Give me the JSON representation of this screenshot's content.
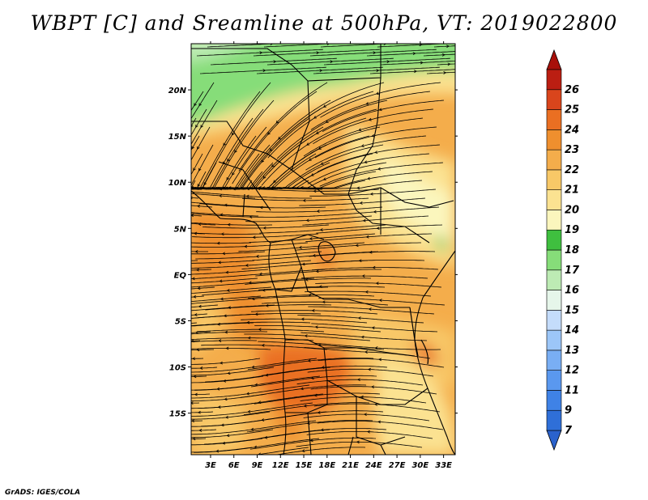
{
  "title": "WBPT [C] and Sreamline at 500hPa, VT: 2019022800",
  "credit": "GrADS: IGES/COLA",
  "map": {
    "lon_labels": [
      "3E",
      "6E",
      "9E",
      "12E",
      "15E",
      "18E",
      "21E",
      "24E",
      "27E",
      "30E",
      "33E"
    ],
    "lon_values": [
      3,
      6,
      9,
      12,
      15,
      18,
      21,
      24,
      27,
      30,
      33
    ],
    "lat_labels": [
      "20N",
      "15N",
      "10N",
      "5N",
      "EQ",
      "5S",
      "10S",
      "15S"
    ],
    "lat_values": [
      20,
      15,
      10,
      5,
      0,
      -5,
      -10,
      -15
    ],
    "lon_range": [
      0.5,
      34.5
    ],
    "lat_range": [
      -19.5,
      25
    ]
  },
  "colorbar": {
    "labels": [
      "7",
      "9",
      "11",
      "12",
      "13",
      "14",
      "15",
      "16",
      "17",
      "18",
      "19",
      "20",
      "21",
      "22",
      "23",
      "24",
      "25",
      "26"
    ],
    "colors": [
      "#2f6fd8",
      "#3f82e6",
      "#5a98ef",
      "#79aef4",
      "#9cc6f8",
      "#c4dcfb",
      "#e6f6ea",
      "#bdebb4",
      "#86dd79",
      "#3fbf3f",
      "#fbf6bd",
      "#fbe291",
      "#f8c867",
      "#f4ad4b",
      "#ef8f2e",
      "#ea6f22",
      "#d9451c",
      "#bb1e12"
    ],
    "under_color": "#2a62cc",
    "over_color": "#a8100a"
  }
}
